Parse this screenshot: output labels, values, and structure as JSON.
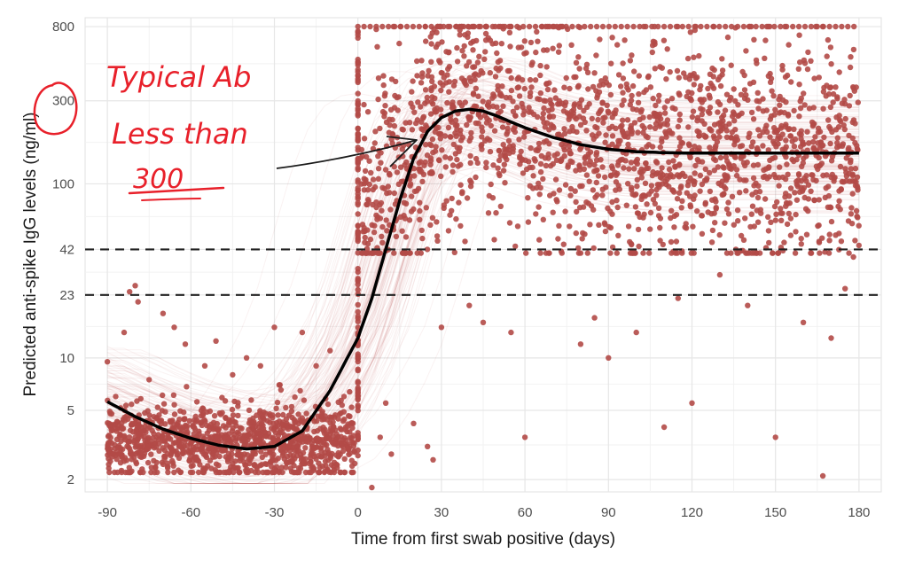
{
  "chart_data": {
    "type": "scatter",
    "title": "",
    "xlabel": "Time from first swab positive (days)",
    "ylabel": "Predicted anti-spike IgG levels (ng/ml)",
    "x_ticks": [
      -90,
      -60,
      -30,
      0,
      30,
      60,
      90,
      120,
      150,
      180
    ],
    "x_tick_labels": [
      "-90",
      "-60",
      "-30",
      "0",
      "30",
      "60",
      "90",
      "120",
      "150",
      "180"
    ],
    "y_ticks": [
      2,
      5,
      10,
      23,
      42,
      100,
      300,
      800
    ],
    "y_tick_labels": [
      "2",
      "5",
      "10",
      "23",
      "42",
      "100",
      "300",
      "800"
    ],
    "xlim": [
      -98,
      188
    ],
    "ylim": [
      1.7,
      900
    ],
    "y_scale": "log",
    "grid": true,
    "point_color": "#b34a47",
    "curve_color": "#000000",
    "reference_lines": [
      {
        "y": 42,
        "style": "dashed"
      },
      {
        "y": 23,
        "style": "dashed"
      }
    ],
    "series": [
      {
        "kind": "fitted-curve",
        "points": [
          [
            -90,
            5.6
          ],
          [
            -80,
            4.6
          ],
          [
            -70,
            3.9
          ],
          [
            -60,
            3.45
          ],
          [
            -50,
            3.15
          ],
          [
            -40,
            3.0
          ],
          [
            -30,
            3.1
          ],
          [
            -20,
            3.8
          ],
          [
            -10,
            6.5
          ],
          [
            0,
            13
          ],
          [
            5,
            22
          ],
          [
            10,
            42
          ],
          [
            15,
            80
          ],
          [
            20,
            140
          ],
          [
            25,
            200
          ],
          [
            30,
            240
          ],
          [
            35,
            262
          ],
          [
            40,
            268
          ],
          [
            45,
            262
          ],
          [
            50,
            245
          ],
          [
            60,
            210
          ],
          [
            70,
            185
          ],
          [
            80,
            168
          ],
          [
            90,
            158
          ],
          [
            100,
            153
          ],
          [
            110,
            151
          ],
          [
            120,
            150
          ],
          [
            135,
            150
          ],
          [
            150,
            150
          ],
          [
            165,
            150
          ],
          [
            180,
            150
          ]
        ]
      },
      {
        "kind": "observed-points",
        "clusters": [
          {
            "x_range": [
              -90,
              -1
            ],
            "y_range": [
              2.2,
              8
            ],
            "center": 3.3,
            "count": 1100
          },
          {
            "x_range": [
              1,
              180
            ],
            "y_range": [
              40,
              800
            ],
            "center": 150,
            "count": 1900
          }
        ],
        "points": [
          [
            -90,
            9.5
          ],
          [
            -87,
            6
          ],
          [
            -84,
            14
          ],
          [
            -82,
            24
          ],
          [
            -80,
            26
          ],
          [
            -79,
            21
          ],
          [
            -75,
            7.5
          ],
          [
            -70,
            18
          ],
          [
            -66,
            15
          ],
          [
            -62,
            12
          ],
          [
            -55,
            9
          ],
          [
            -51,
            12.5
          ],
          [
            -45,
            8
          ],
          [
            -40,
            10
          ],
          [
            -35,
            9
          ],
          [
            -30,
            15
          ],
          [
            -28,
            7
          ],
          [
            -20,
            14
          ],
          [
            -15,
            9
          ],
          [
            -10,
            11
          ],
          [
            -5,
            6
          ],
          [
            5,
            1.8
          ],
          [
            8,
            3.5
          ],
          [
            10,
            5.5
          ],
          [
            12,
            2.8
          ],
          [
            20,
            4.2
          ],
          [
            25,
            3.1
          ],
          [
            27,
            2.6
          ],
          [
            30,
            15
          ],
          [
            40,
            20
          ],
          [
            45,
            16
          ],
          [
            55,
            14
          ],
          [
            60,
            3.5
          ],
          [
            80,
            12
          ],
          [
            85,
            17
          ],
          [
            90,
            10
          ],
          [
            100,
            14
          ],
          [
            110,
            4
          ],
          [
            115,
            22
          ],
          [
            120,
            5.5
          ],
          [
            130,
            30
          ],
          [
            140,
            20
          ],
          [
            150,
            3.5
          ],
          [
            160,
            16
          ],
          [
            167,
            2.1
          ],
          [
            170,
            13
          ],
          [
            175,
            25
          ],
          [
            178,
            38
          ]
        ]
      }
    ],
    "annotations": [
      {
        "text": "Typical Ab",
        "kind": "handwritten",
        "color": "#e8202a"
      },
      {
        "text": "Less than",
        "kind": "handwritten",
        "color": "#e8202a"
      },
      {
        "text": "300",
        "kind": "handwritten",
        "color": "#e8202a"
      }
    ]
  }
}
